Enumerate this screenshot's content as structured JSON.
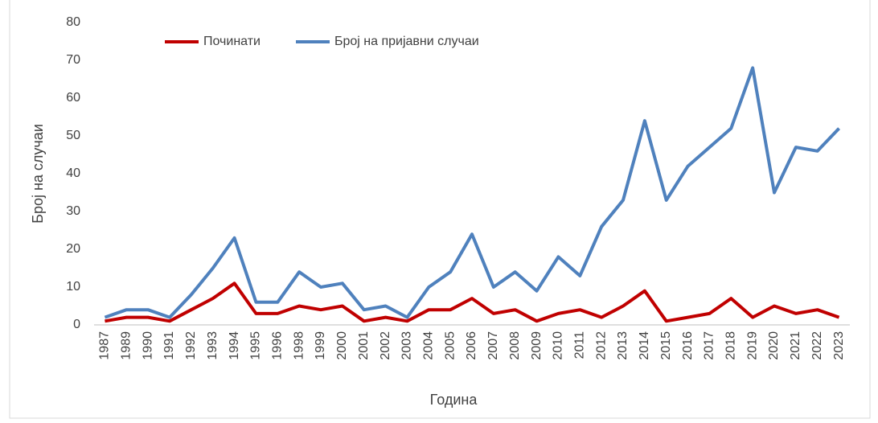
{
  "chart_data": {
    "type": "line",
    "x_label": "Година",
    "y_label": "Број на случаи",
    "categories": [
      "1987",
      "1989",
      "1990",
      "1991",
      "1992",
      "1993",
      "1994",
      "1995",
      "1996",
      "1998",
      "1999",
      "2000",
      "2001",
      "2002",
      "2003",
      "2004",
      "2005",
      "2006",
      "2007",
      "2008",
      "2009",
      "2010",
      "2011",
      "2012",
      "2013",
      "2014",
      "2015",
      "2016",
      "2017",
      "2018",
      "2019",
      "2020",
      "2021",
      "2022",
      "2023"
    ],
    "series": [
      {
        "name": "Починати",
        "color": "#c00000",
        "values": [
          1,
          2,
          2,
          1,
          4,
          7,
          11,
          3,
          3,
          5,
          4,
          5,
          1,
          2,
          1,
          4,
          4,
          7,
          3,
          4,
          1,
          3,
          4,
          2,
          5,
          9,
          1,
          2,
          3,
          7,
          2,
          5,
          3,
          4,
          2
        ]
      },
      {
        "name": "Број на пријавни случаи",
        "color": "#4f81bd",
        "values": [
          2,
          4,
          4,
          2,
          8,
          15,
          23,
          6,
          6,
          14,
          10,
          11,
          4,
          5,
          2,
          10,
          14,
          24,
          10,
          14,
          9,
          18,
          13,
          26,
          33,
          54,
          33,
          42,
          47,
          52,
          68,
          35,
          47,
          46,
          52
        ]
      }
    ],
    "ylim": [
      0,
      80
    ],
    "yticks": [
      0,
      10,
      20,
      30,
      40,
      50,
      60,
      70,
      80
    ],
    "grid": false,
    "legend": "top"
  }
}
